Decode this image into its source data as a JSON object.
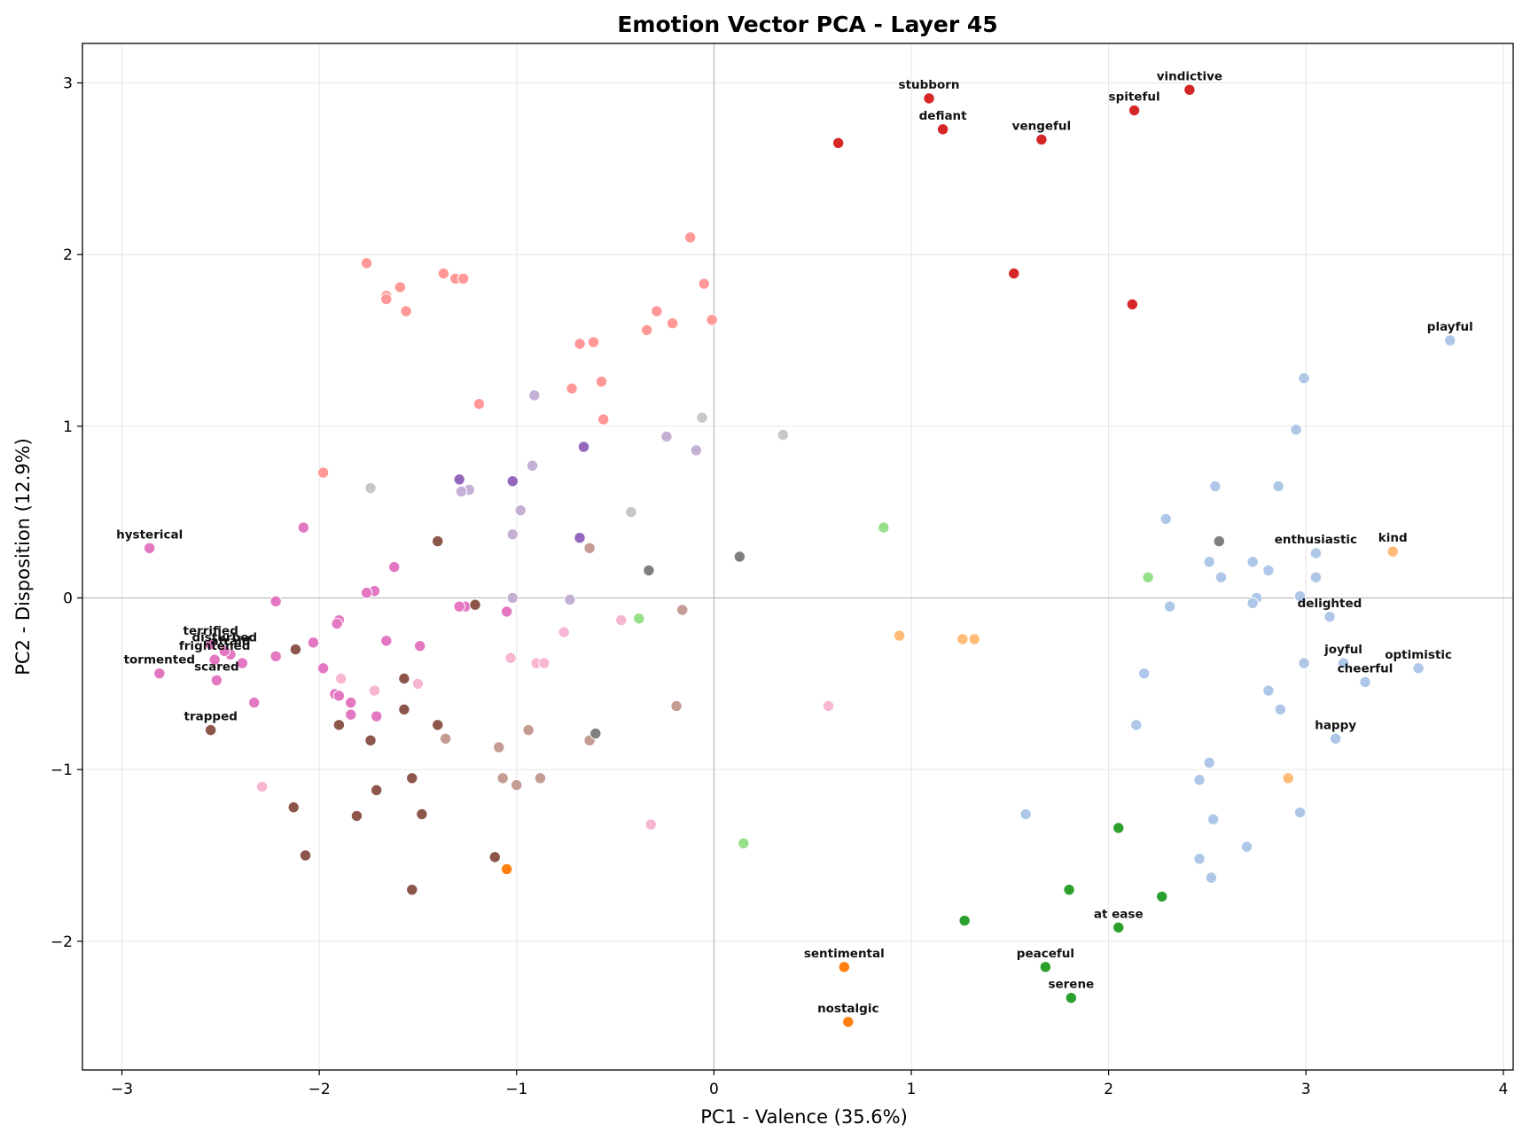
{
  "chart_data": {
    "type": "scatter",
    "title": "Emotion Vector PCA - Layer 45",
    "xlabel": "PC1 - Valence (35.6%)",
    "ylabel": "PC2 - Disposition (12.9%)",
    "xlim": [
      -3.2,
      4.05
    ],
    "ylim": [
      -2.75,
      3.23
    ],
    "xticks": [
      -3,
      -2,
      -1,
      0,
      1,
      2,
      3,
      4
    ],
    "yticks": [
      -2,
      -1,
      0,
      1,
      2,
      3
    ],
    "grid": true,
    "reference_lines": {
      "x": 0,
      "y": 0
    },
    "colors": {
      "red": "#d62728",
      "salmon": "#ff9896",
      "lightblue": "#aec7e8",
      "green": "#2ca02c",
      "lightgreen": "#98df8a",
      "orange": "#ff7f0e",
      "lightorange": "#ffbb78",
      "pink": "#e377c2",
      "lightpink": "#f7b6d2",
      "brown": "#8c564b",
      "tan": "#c49c94",
      "purple": "#9467bd",
      "lavender": "#c5b0d5",
      "gray": "#7f7f7f",
      "lightgray": "#c7c7c7"
    },
    "points": [
      {
        "x": 1.09,
        "y": 2.91,
        "c": "red",
        "label": "stubborn"
      },
      {
        "x": 1.16,
        "y": 2.73,
        "c": "red",
        "label": "defiant"
      },
      {
        "x": 2.41,
        "y": 2.96,
        "c": "red",
        "label": "vindictive"
      },
      {
        "x": 2.13,
        "y": 2.84,
        "c": "red",
        "label": "spiteful"
      },
      {
        "x": 1.66,
        "y": 2.67,
        "c": "red",
        "label": "vengeful"
      },
      {
        "x": 0.63,
        "y": 2.65,
        "c": "red"
      },
      {
        "x": 1.52,
        "y": 1.89,
        "c": "red"
      },
      {
        "x": 2.12,
        "y": 1.71,
        "c": "red"
      },
      {
        "x": -0.12,
        "y": 2.1,
        "c": "salmon"
      },
      {
        "x": -1.76,
        "y": 1.95,
        "c": "salmon"
      },
      {
        "x": -1.37,
        "y": 1.89,
        "c": "salmon"
      },
      {
        "x": -1.31,
        "y": 1.86,
        "c": "salmon"
      },
      {
        "x": -1.27,
        "y": 1.86,
        "c": "salmon"
      },
      {
        "x": -0.05,
        "y": 1.83,
        "c": "salmon"
      },
      {
        "x": -1.59,
        "y": 1.81,
        "c": "salmon"
      },
      {
        "x": -1.66,
        "y": 1.76,
        "c": "salmon"
      },
      {
        "x": -1.66,
        "y": 1.74,
        "c": "salmon"
      },
      {
        "x": -1.56,
        "y": 1.67,
        "c": "salmon"
      },
      {
        "x": -0.29,
        "y": 1.67,
        "c": "salmon"
      },
      {
        "x": -0.01,
        "y": 1.62,
        "c": "salmon"
      },
      {
        "x": -0.21,
        "y": 1.6,
        "c": "salmon"
      },
      {
        "x": -0.34,
        "y": 1.56,
        "c": "salmon"
      },
      {
        "x": -0.68,
        "y": 1.48,
        "c": "salmon"
      },
      {
        "x": -0.61,
        "y": 1.49,
        "c": "salmon"
      },
      {
        "x": -0.57,
        "y": 1.26,
        "c": "salmon"
      },
      {
        "x": -0.72,
        "y": 1.22,
        "c": "salmon"
      },
      {
        "x": -1.19,
        "y": 1.13,
        "c": "salmon"
      },
      {
        "x": -0.56,
        "y": 1.04,
        "c": "salmon"
      },
      {
        "x": -1.98,
        "y": 0.73,
        "c": "salmon"
      },
      {
        "x": 3.73,
        "y": 1.5,
        "c": "lightblue",
        "label": "playful"
      },
      {
        "x": 2.99,
        "y": 1.28,
        "c": "lightblue"
      },
      {
        "x": 2.95,
        "y": 0.98,
        "c": "lightblue"
      },
      {
        "x": 2.54,
        "y": 0.65,
        "c": "lightblue"
      },
      {
        "x": 2.86,
        "y": 0.65,
        "c": "lightblue"
      },
      {
        "x": 2.29,
        "y": 0.46,
        "c": "lightblue"
      },
      {
        "x": 3.05,
        "y": 0.26,
        "c": "lightblue",
        "label": "enthusiastic"
      },
      {
        "x": 2.51,
        "y": 0.21,
        "c": "lightblue"
      },
      {
        "x": 2.73,
        "y": 0.21,
        "c": "lightblue"
      },
      {
        "x": 2.81,
        "y": 0.16,
        "c": "lightblue"
      },
      {
        "x": 2.57,
        "y": 0.12,
        "c": "lightblue"
      },
      {
        "x": 3.05,
        "y": 0.12,
        "c": "lightblue"
      },
      {
        "x": 2.75,
        "y": 0.0,
        "c": "lightblue"
      },
      {
        "x": 2.97,
        "y": 0.01,
        "c": "lightblue"
      },
      {
        "x": 2.73,
        "y": -0.03,
        "c": "lightblue"
      },
      {
        "x": 2.31,
        "y": -0.05,
        "c": "lightblue"
      },
      {
        "x": 3.12,
        "y": -0.11,
        "c": "lightblue",
        "label": "delighted"
      },
      {
        "x": 2.99,
        "y": -0.38,
        "c": "lightblue"
      },
      {
        "x": 3.19,
        "y": -0.38,
        "c": "lightblue",
        "label": "joyful"
      },
      {
        "x": 3.57,
        "y": -0.41,
        "c": "lightblue",
        "label": "optimistic"
      },
      {
        "x": 3.3,
        "y": -0.49,
        "c": "lightblue",
        "label": "cheerful"
      },
      {
        "x": 2.18,
        "y": -0.44,
        "c": "lightblue"
      },
      {
        "x": 2.81,
        "y": -0.54,
        "c": "lightblue"
      },
      {
        "x": 2.87,
        "y": -0.65,
        "c": "lightblue"
      },
      {
        "x": 2.14,
        "y": -0.74,
        "c": "lightblue"
      },
      {
        "x": 3.15,
        "y": -0.82,
        "c": "lightblue",
        "label": "happy"
      },
      {
        "x": 2.51,
        "y": -0.96,
        "c": "lightblue"
      },
      {
        "x": 2.46,
        "y": -1.06,
        "c": "lightblue"
      },
      {
        "x": 1.58,
        "y": -1.26,
        "c": "lightblue"
      },
      {
        "x": 2.97,
        "y": -1.25,
        "c": "lightblue"
      },
      {
        "x": 2.53,
        "y": -1.29,
        "c": "lightblue"
      },
      {
        "x": 2.7,
        "y": -1.45,
        "c": "lightblue"
      },
      {
        "x": 2.46,
        "y": -1.52,
        "c": "lightblue"
      },
      {
        "x": 2.52,
        "y": -1.63,
        "c": "lightblue"
      },
      {
        "x": 2.05,
        "y": -1.34,
        "c": "green"
      },
      {
        "x": 1.8,
        "y": -1.7,
        "c": "green"
      },
      {
        "x": 2.27,
        "y": -1.74,
        "c": "green"
      },
      {
        "x": 1.27,
        "y": -1.88,
        "c": "green"
      },
      {
        "x": 2.05,
        "y": -1.92,
        "c": "green",
        "label": "at ease"
      },
      {
        "x": 1.68,
        "y": -2.15,
        "c": "green",
        "label": "peaceful"
      },
      {
        "x": 1.81,
        "y": -2.33,
        "c": "green",
        "label": "serene"
      },
      {
        "x": 0.86,
        "y": 0.41,
        "c": "lightgreen"
      },
      {
        "x": 2.2,
        "y": 0.12,
        "c": "lightgreen"
      },
      {
        "x": -0.38,
        "y": -0.12,
        "c": "lightgreen"
      },
      {
        "x": 0.15,
        "y": -1.43,
        "c": "lightgreen"
      },
      {
        "x": 0.66,
        "y": -2.15,
        "c": "orange",
        "label": "sentimental"
      },
      {
        "x": 0.68,
        "y": -2.47,
        "c": "orange",
        "label": "nostalgic"
      },
      {
        "x": -1.05,
        "y": -1.58,
        "c": "orange"
      },
      {
        "x": 3.44,
        "y": 0.27,
        "c": "lightorange",
        "label": "kind"
      },
      {
        "x": 0.94,
        "y": -0.22,
        "c": "lightorange"
      },
      {
        "x": 1.26,
        "y": -0.24,
        "c": "lightorange"
      },
      {
        "x": 1.32,
        "y": -0.24,
        "c": "lightorange"
      },
      {
        "x": 2.91,
        "y": -1.05,
        "c": "lightorange"
      },
      {
        "x": -2.86,
        "y": 0.29,
        "c": "pink",
        "label": "hysterical"
      },
      {
        "x": -2.08,
        "y": 0.41,
        "c": "pink"
      },
      {
        "x": -1.62,
        "y": 0.18,
        "c": "pink"
      },
      {
        "x": -1.72,
        "y": 0.04,
        "c": "pink"
      },
      {
        "x": -1.76,
        "y": 0.03,
        "c": "pink"
      },
      {
        "x": -2.22,
        "y": -0.02,
        "c": "pink"
      },
      {
        "x": -1.26,
        "y": -0.05,
        "c": "pink"
      },
      {
        "x": -1.29,
        "y": -0.05,
        "c": "pink"
      },
      {
        "x": -1.05,
        "y": -0.08,
        "c": "pink"
      },
      {
        "x": -1.9,
        "y": -0.13,
        "c": "pink"
      },
      {
        "x": -1.91,
        "y": -0.15,
        "c": "pink"
      },
      {
        "x": -2.03,
        "y": -0.26,
        "c": "pink"
      },
      {
        "x": -1.66,
        "y": -0.25,
        "c": "pink"
      },
      {
        "x": -1.49,
        "y": -0.28,
        "c": "pink"
      },
      {
        "x": -2.45,
        "y": -0.33,
        "c": "pink",
        "label": "afraid"
      },
      {
        "x": -2.22,
        "y": -0.34,
        "c": "pink"
      },
      {
        "x": -2.53,
        "y": -0.36,
        "c": "pink",
        "label": "frightened"
      },
      {
        "x": -2.39,
        "y": -0.38,
        "c": "pink"
      },
      {
        "x": -1.98,
        "y": -0.41,
        "c": "pink"
      },
      {
        "x": -2.81,
        "y": -0.44,
        "c": "pink",
        "label": "tormented"
      },
      {
        "x": -2.52,
        "y": -0.48,
        "c": "pink",
        "label": "scared"
      },
      {
        "x": -1.92,
        "y": -0.56,
        "c": "pink"
      },
      {
        "x": -1.9,
        "y": -0.57,
        "c": "pink"
      },
      {
        "x": -2.33,
        "y": -0.61,
        "c": "pink"
      },
      {
        "x": -1.84,
        "y": -0.61,
        "c": "pink"
      },
      {
        "x": -1.84,
        "y": -0.68,
        "c": "pink"
      },
      {
        "x": -1.71,
        "y": -0.69,
        "c": "pink"
      },
      {
        "x": -2.55,
        "y": -0.27,
        "c": "pink",
        "label": "terrified"
      },
      {
        "x": -2.48,
        "y": -0.31,
        "c": "pink",
        "label": "disturbed"
      },
      {
        "x": -1.89,
        "y": -0.47,
        "c": "lightpink"
      },
      {
        "x": -1.5,
        "y": -0.5,
        "c": "lightpink"
      },
      {
        "x": -1.72,
        "y": -0.54,
        "c": "lightpink"
      },
      {
        "x": -0.76,
        "y": -0.2,
        "c": "lightpink"
      },
      {
        "x": -0.47,
        "y": -0.13,
        "c": "lightpink"
      },
      {
        "x": -1.03,
        "y": -0.35,
        "c": "lightpink"
      },
      {
        "x": -0.9,
        "y": -0.38,
        "c": "lightpink"
      },
      {
        "x": -0.86,
        "y": -0.38,
        "c": "lightpink"
      },
      {
        "x": 0.58,
        "y": -0.63,
        "c": "lightpink"
      },
      {
        "x": -2.29,
        "y": -1.1,
        "c": "lightpink"
      },
      {
        "x": -0.32,
        "y": -1.32,
        "c": "lightpink"
      },
      {
        "x": -1.4,
        "y": 0.33,
        "c": "brown"
      },
      {
        "x": -1.21,
        "y": -0.04,
        "c": "brown"
      },
      {
        "x": -2.12,
        "y": -0.3,
        "c": "brown"
      },
      {
        "x": -1.57,
        "y": -0.47,
        "c": "brown"
      },
      {
        "x": -1.57,
        "y": -0.65,
        "c": "brown"
      },
      {
        "x": -1.4,
        "y": -0.74,
        "c": "brown"
      },
      {
        "x": -1.9,
        "y": -0.74,
        "c": "brown"
      },
      {
        "x": -2.55,
        "y": -0.77,
        "c": "brown",
        "label": "trapped"
      },
      {
        "x": -1.74,
        "y": -0.83,
        "c": "brown"
      },
      {
        "x": -1.53,
        "y": -1.05,
        "c": "brown"
      },
      {
        "x": -1.71,
        "y": -1.12,
        "c": "brown"
      },
      {
        "x": -2.13,
        "y": -1.22,
        "c": "brown"
      },
      {
        "x": -1.48,
        "y": -1.26,
        "c": "brown"
      },
      {
        "x": -1.81,
        "y": -1.27,
        "c": "brown"
      },
      {
        "x": -2.07,
        "y": -1.5,
        "c": "brown"
      },
      {
        "x": -1.11,
        "y": -1.51,
        "c": "brown"
      },
      {
        "x": -1.53,
        "y": -1.7,
        "c": "brown"
      },
      {
        "x": -0.63,
        "y": 0.29,
        "c": "tan"
      },
      {
        "x": -0.16,
        "y": -0.07,
        "c": "tan"
      },
      {
        "x": -0.19,
        "y": -0.63,
        "c": "tan"
      },
      {
        "x": -0.94,
        "y": -0.77,
        "c": "tan"
      },
      {
        "x": -1.36,
        "y": -0.82,
        "c": "tan"
      },
      {
        "x": -0.63,
        "y": -0.83,
        "c": "tan"
      },
      {
        "x": -1.09,
        "y": -0.87,
        "c": "tan"
      },
      {
        "x": -1.07,
        "y": -1.05,
        "c": "tan"
      },
      {
        "x": -0.88,
        "y": -1.05,
        "c": "tan"
      },
      {
        "x": -1.0,
        "y": -1.09,
        "c": "tan"
      },
      {
        "x": -0.66,
        "y": 0.88,
        "c": "purple"
      },
      {
        "x": -1.29,
        "y": 0.69,
        "c": "purple"
      },
      {
        "x": -1.02,
        "y": 0.68,
        "c": "purple"
      },
      {
        "x": -0.68,
        "y": 0.35,
        "c": "purple"
      },
      {
        "x": -0.91,
        "y": 1.18,
        "c": "lavender"
      },
      {
        "x": -0.24,
        "y": 0.94,
        "c": "lavender"
      },
      {
        "x": -0.09,
        "y": 0.86,
        "c": "lavender"
      },
      {
        "x": -0.92,
        "y": 0.77,
        "c": "lavender"
      },
      {
        "x": -1.24,
        "y": 0.63,
        "c": "lavender"
      },
      {
        "x": -1.28,
        "y": 0.62,
        "c": "lavender"
      },
      {
        "x": -0.98,
        "y": 0.51,
        "c": "lavender"
      },
      {
        "x": -1.02,
        "y": 0.37,
        "c": "lavender"
      },
      {
        "x": -1.02,
        "y": 0.0,
        "c": "lavender"
      },
      {
        "x": -0.73,
        "y": -0.01,
        "c": "lavender"
      },
      {
        "x": 0.13,
        "y": 0.24,
        "c": "gray"
      },
      {
        "x": -0.33,
        "y": 0.16,
        "c": "gray"
      },
      {
        "x": 2.56,
        "y": 0.33,
        "c": "gray"
      },
      {
        "x": -0.6,
        "y": -0.79,
        "c": "gray"
      },
      {
        "x": -0.06,
        "y": 1.05,
        "c": "lightgray"
      },
      {
        "x": 0.35,
        "y": 0.95,
        "c": "lightgray"
      },
      {
        "x": -1.74,
        "y": 0.64,
        "c": "lightgray"
      },
      {
        "x": -0.42,
        "y": 0.5,
        "c": "lightgray"
      }
    ]
  }
}
